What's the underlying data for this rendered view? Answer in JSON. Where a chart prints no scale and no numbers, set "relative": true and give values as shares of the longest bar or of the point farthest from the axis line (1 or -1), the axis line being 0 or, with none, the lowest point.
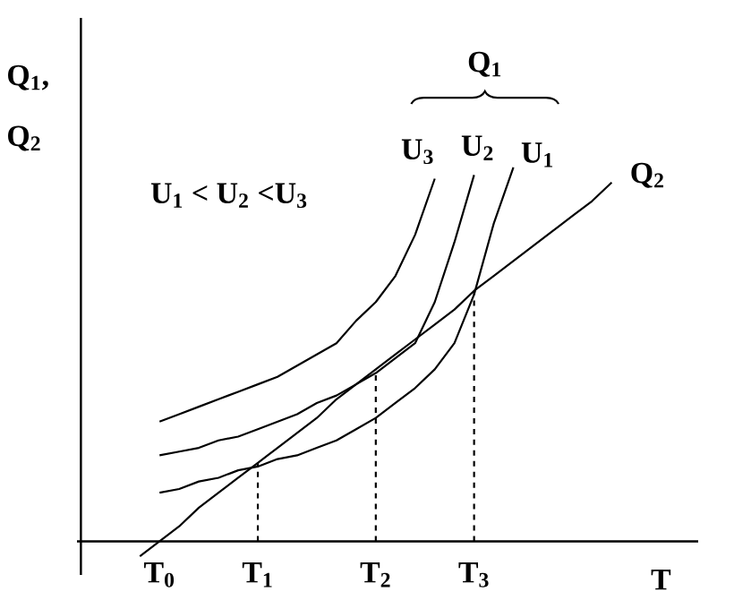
{
  "chart_data": {
    "type": "line",
    "relative": true,
    "xlabel": "T",
    "ylabel": "Q$_{1}$, Q$_{2}$",
    "categories": [
      null,
      null,
      null,
      null,
      "T$_{0}$",
      null,
      null,
      null,
      null,
      "T$_{1}$",
      null,
      null,
      null,
      null,
      null,
      "T$_{2}$",
      null,
      null,
      null,
      null,
      "T$_{3}$",
      null,
      null,
      null,
      null,
      null,
      null,
      null,
      null,
      null,
      null,
      null
    ],
    "annotations": [
      "U$_{1}$ < U$_{2}$ <U$_{3}$",
      "Q$_{1}$"
    ],
    "ref_lines": [
      {
        "axis": "x",
        "value": "T$_{1}$",
        "line_style": "dashed",
        "color": "#000000"
      },
      {
        "axis": "x",
        "value": "T$_{2}$",
        "line_style": "dashed",
        "color": "#000000"
      },
      {
        "axis": "x",
        "value": "T$_{3}$",
        "line_style": "dashed",
        "color": "#000000"
      }
    ],
    "series": [
      {
        "name": "U$_{3}$",
        "color": "#000000",
        "values": [
          null,
          null,
          null,
          null,
          0.32,
          0.34,
          0.36,
          0.38,
          0.4,
          0.42,
          0.44,
          0.47,
          0.5,
          0.53,
          0.59,
          0.64,
          0.71,
          0.82,
          0.97,
          null,
          null,
          null,
          null,
          null,
          null,
          null,
          null,
          null,
          null,
          null,
          null,
          null
        ]
      },
      {
        "name": "U$_{2}$",
        "color": "#000000",
        "values": [
          null,
          null,
          null,
          null,
          0.23,
          0.24,
          0.25,
          0.27,
          0.28,
          0.3,
          0.32,
          0.34,
          0.37,
          0.39,
          0.42,
          0.45,
          0.49,
          0.53,
          0.64,
          0.8,
          0.98,
          null,
          null,
          null,
          null,
          null,
          null,
          null,
          null,
          null,
          null,
          null
        ]
      },
      {
        "name": "U$_{1}$",
        "color": "#000000",
        "values": [
          null,
          null,
          null,
          null,
          0.13,
          0.14,
          0.16,
          0.17,
          0.19,
          0.2,
          0.22,
          0.23,
          0.25,
          0.27,
          0.3,
          0.33,
          0.37,
          0.41,
          0.46,
          0.53,
          0.66,
          0.85,
          1.0,
          null,
          null,
          null,
          null,
          null,
          null,
          null,
          null,
          null
        ]
      },
      {
        "name": "Q$_{2}$",
        "color": "#000000",
        "values": [
          null,
          null,
          null,
          -0.04,
          0.0,
          0.04,
          0.09,
          0.13,
          0.17,
          0.21,
          0.25,
          0.29,
          0.33,
          0.38,
          0.42,
          0.46,
          0.5,
          0.54,
          0.58,
          0.62,
          0.67,
          0.71,
          0.75,
          0.79,
          0.83,
          0.87,
          0.91,
          0.96,
          null,
          null,
          null,
          null
        ]
      }
    ]
  }
}
